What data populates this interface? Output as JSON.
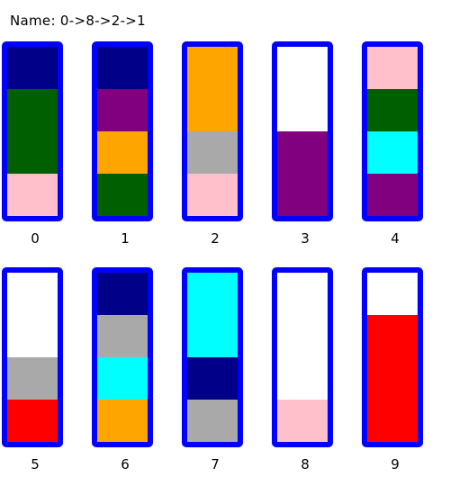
{
  "header": {
    "name_label": "Name:",
    "move_sequence": "0->8->2->1"
  },
  "colors": {
    "tube_border": "#0000ff",
    "navy": "#000088",
    "green": "#005f00",
    "pink": "#ffc0cb",
    "purple": "#800080",
    "orange": "#ffa500",
    "gray": "#a9a9a9",
    "cyan": "#00ffff",
    "red": "#ff0000"
  },
  "tubes": [
    {
      "label": "0",
      "segments_bottom_to_top": [
        "pink",
        "green",
        "green",
        "navy"
      ]
    },
    {
      "label": "1",
      "segments_bottom_to_top": [
        "green",
        "orange",
        "purple",
        "navy"
      ]
    },
    {
      "label": "2",
      "segments_bottom_to_top": [
        "pink",
        "gray",
        "orange",
        "orange"
      ]
    },
    {
      "label": "3",
      "segments_bottom_to_top": [
        "purple",
        "purple"
      ]
    },
    {
      "label": "4",
      "segments_bottom_to_top": [
        "purple",
        "cyan",
        "green",
        "pink"
      ]
    },
    {
      "label": "5",
      "segments_bottom_to_top": [
        "red",
        "gray"
      ]
    },
    {
      "label": "6",
      "segments_bottom_to_top": [
        "orange",
        "cyan",
        "gray",
        "navy"
      ]
    },
    {
      "label": "7",
      "segments_bottom_to_top": [
        "gray",
        "navy",
        "cyan",
        "cyan"
      ]
    },
    {
      "label": "8",
      "segments_bottom_to_top": [
        "pink"
      ]
    },
    {
      "label": "9",
      "segments_bottom_to_top": [
        "red",
        "red",
        "red"
      ]
    }
  ]
}
